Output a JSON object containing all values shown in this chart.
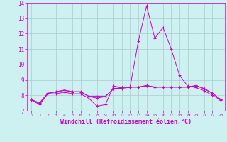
{
  "title": "",
  "xlabel": "Windchill (Refroidissement éolien,°C)",
  "ylabel": "",
  "background_color": "#cdf0f0",
  "grid_color": "#aacccc",
  "line_color": "#cc00cc",
  "xlim": [
    -0.5,
    23.5
  ],
  "ylim": [
    7,
    14
  ],
  "xticks": [
    0,
    1,
    2,
    3,
    4,
    5,
    6,
    7,
    8,
    9,
    10,
    11,
    12,
    13,
    14,
    15,
    16,
    17,
    18,
    19,
    20,
    21,
    22,
    23
  ],
  "yticks": [
    7,
    8,
    9,
    10,
    11,
    12,
    13,
    14
  ],
  "line1": [
    7.7,
    7.4,
    8.1,
    8.1,
    8.2,
    8.1,
    8.1,
    7.8,
    7.3,
    7.4,
    8.6,
    8.5,
    8.55,
    11.5,
    13.8,
    11.7,
    12.4,
    11.0,
    9.3,
    8.6,
    8.5,
    8.3,
    8.0,
    7.7
  ],
  "line2": [
    7.75,
    7.45,
    8.12,
    8.22,
    8.32,
    8.22,
    8.22,
    7.92,
    7.82,
    7.92,
    8.45,
    8.45,
    8.52,
    8.52,
    8.62,
    8.52,
    8.52,
    8.52,
    8.52,
    8.52,
    8.62,
    8.42,
    8.12,
    7.72
  ],
  "line3": [
    7.72,
    7.52,
    8.14,
    8.24,
    8.34,
    8.24,
    8.24,
    7.94,
    7.94,
    7.94,
    8.42,
    8.52,
    8.54,
    8.54,
    8.64,
    8.54,
    8.54,
    8.54,
    8.54,
    8.54,
    8.64,
    8.44,
    8.14,
    7.74
  ]
}
